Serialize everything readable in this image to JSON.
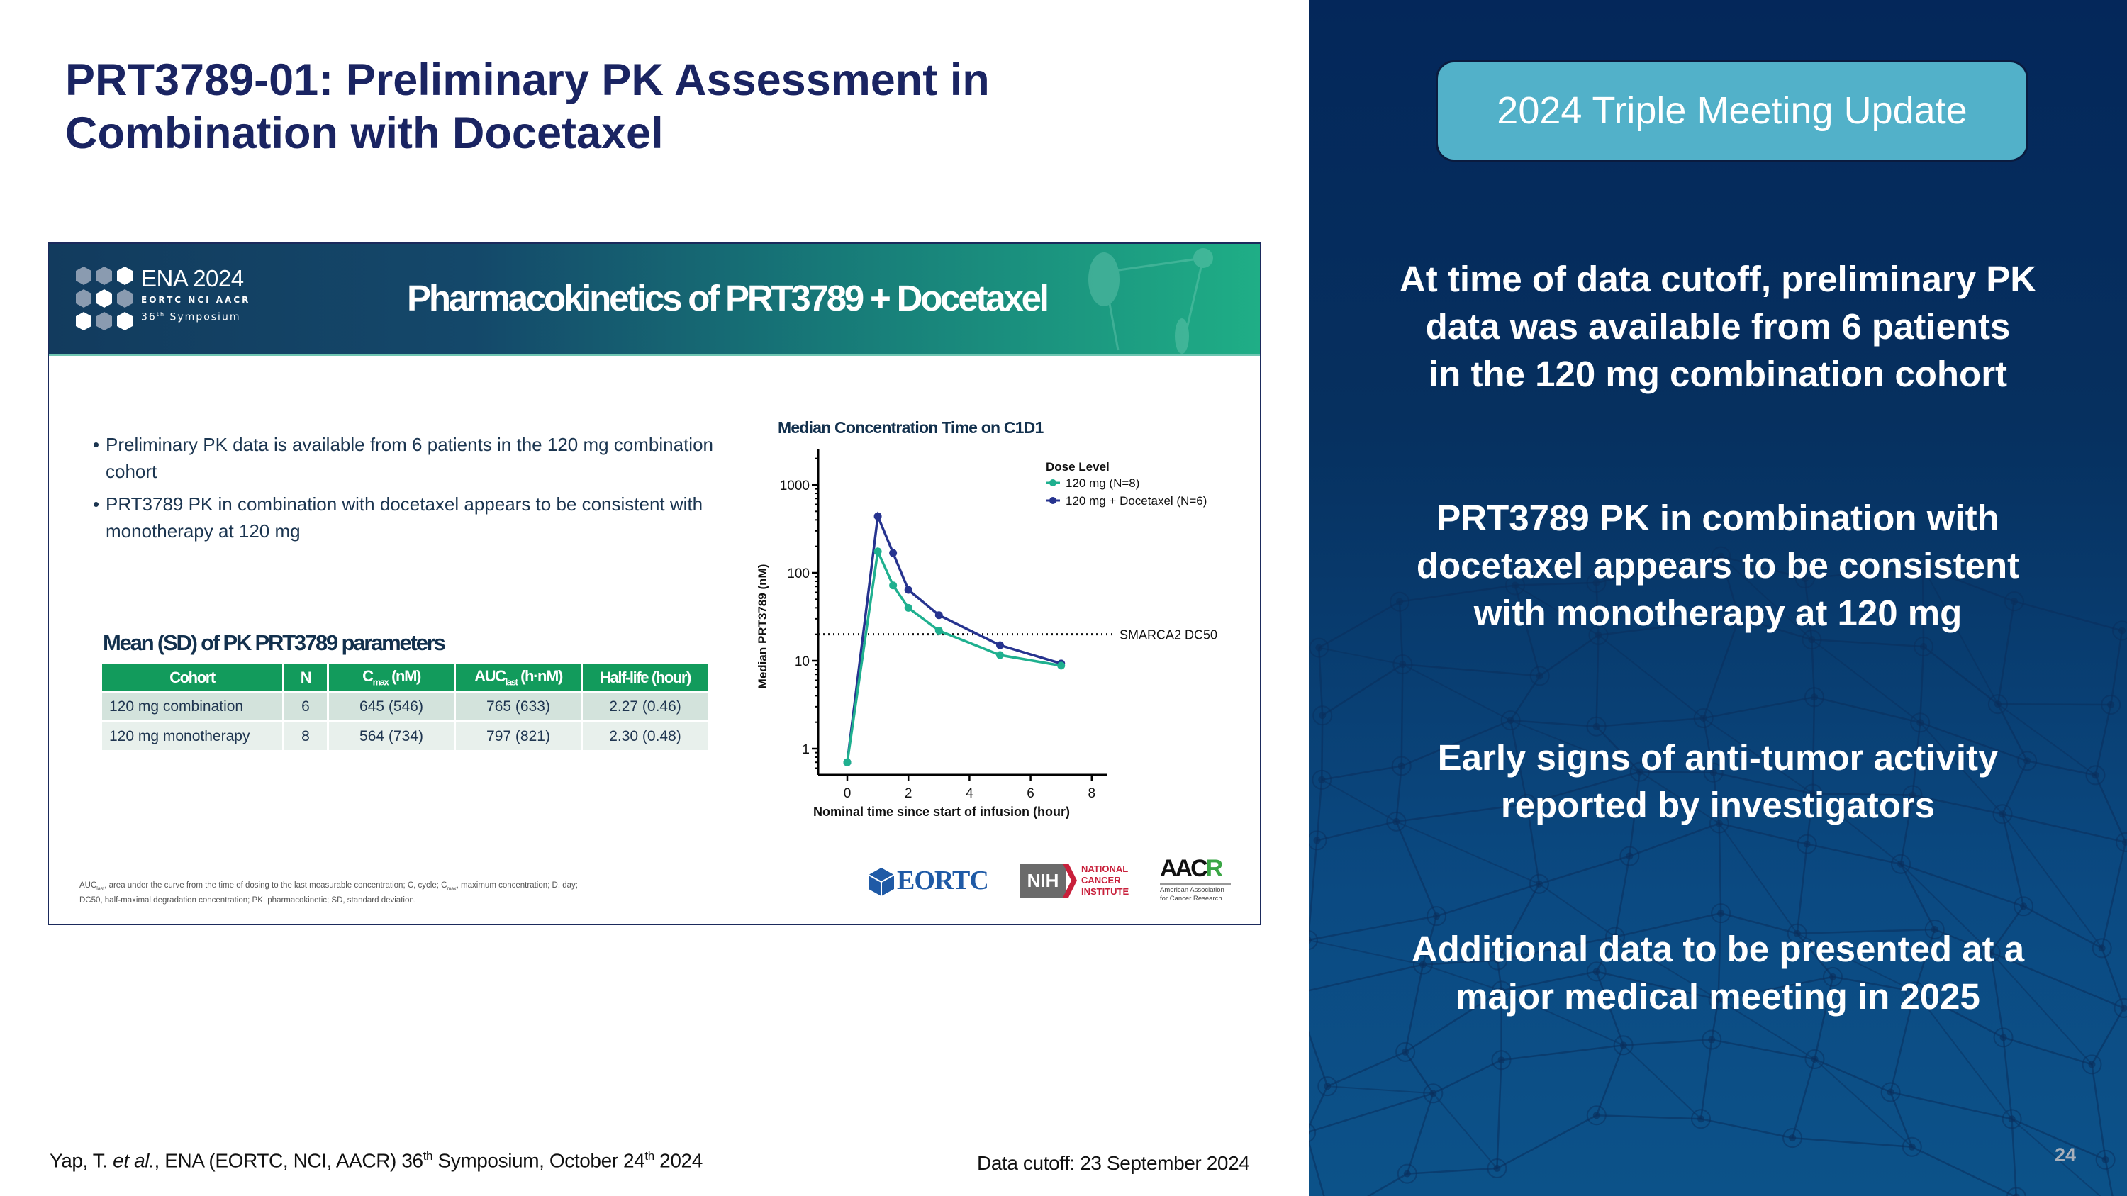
{
  "slide": {
    "title": "PRT3789-01: Preliminary PK Assessment in Combination with Docetaxel",
    "page_number": "24",
    "colors": {
      "title": "#1a2462",
      "right_panel": "#06305f",
      "badge": "#52b1c9",
      "table_header": "#129b5c",
      "series_mono": "#1fb08f",
      "series_combo": "#26338f"
    }
  },
  "embedded": {
    "banner": {
      "conference_name": "ENA 2024",
      "conference_orgs": "EORTC NCI AACR",
      "symposium_num": "36",
      "symposium_sup": "th",
      "symposium_word": "Symposium",
      "title": "Pharmacokinetics of PRT3789 + Docetaxel"
    },
    "bullets": [
      "Preliminary PK data is available from 6 patients in the 120 mg combination cohort",
      "PRT3789 PK in combination with docetaxel appears to be consistent with monotherapy at 120 mg"
    ],
    "table": {
      "title": "Mean (SD) of PK PRT3789 parameters",
      "headers": {
        "cohort": "Cohort",
        "n": "N",
        "cmax_main": "C",
        "cmax_sub": "max",
        "cmax_unit": " (nM)",
        "auc_main": "AUC",
        "auc_sub": "last",
        "auc_unit": " (h·nM)",
        "halflife": "Half-life (hour)"
      },
      "rows": [
        {
          "cohort": "120 mg combination",
          "n": "6",
          "cmax": "645 (546)",
          "auc": "765 (633)",
          "halflife": "2.27 (0.46)"
        },
        {
          "cohort": "120 mg monotherapy",
          "n": "8",
          "cmax": "564 (734)",
          "auc": "797 (821)",
          "halflife": "2.30 (0.48)"
        }
      ]
    },
    "footnote": {
      "auc_main": "AUC",
      "auc_sub": "last",
      "part1": ", area under the curve from the time of dosing to the last measurable concentration;  C, cycle; C",
      "cmax_sub": "max",
      "part2": ", maximum concentration; D, day;",
      "line2": "DC50, half-maximal degradation concentration; PK, pharmacokinetic; SD, standard deviation."
    },
    "logos": {
      "eortc": "EORTC",
      "nih": "NIH",
      "nci_lines": [
        "NATIONAL",
        "CANCER",
        "INSTITUTE"
      ],
      "aacr_a": "AAC",
      "aacr_r": "R",
      "aacr_lines": [
        "American Association",
        "for Cancer Research"
      ]
    }
  },
  "chart_data": {
    "type": "line",
    "title": "Median Concentration Time on C1D1",
    "xlabel": "Nominal time since start of infusion (hour)",
    "ylabel": "Median PRT3789 (nM)",
    "yscale": "log",
    "xlim": [
      -0.9,
      8.4
    ],
    "ylim": [
      0.45,
      2000
    ],
    "xticks": [
      0,
      2,
      4,
      6,
      8
    ],
    "yticks": [
      1,
      10,
      100,
      1000
    ],
    "ytick_labels": [
      "1",
      "10",
      "100",
      "1000"
    ],
    "legend_title": "Dose Level",
    "legend_position": "upper right",
    "grid": false,
    "series": [
      {
        "name": "120 mg (N=8)",
        "color": "#1fb08f",
        "x": [
          0,
          1,
          1.5,
          2,
          3,
          5,
          7
        ],
        "y": [
          0.7,
          175,
          72,
          40,
          22,
          11.6,
          8.8
        ]
      },
      {
        "name": "120 mg + Docetaxel (N=6)",
        "color": "#26338f",
        "x": [
          0,
          1,
          1.5,
          2,
          3,
          5,
          7
        ],
        "y": [
          0.7,
          440,
          168,
          64,
          33,
          15,
          9.3
        ]
      }
    ],
    "reference_lines": [
      {
        "label": "SMARCA2 DC50",
        "y": 20,
        "style": "dotted"
      }
    ]
  },
  "footer": {
    "citation_author": "Yap, T. ",
    "citation_etal": "et al.",
    "citation_mid": ", ENA (EORTC, NCI, AACR) 36",
    "citation_sup1": "th",
    "citation_mid2": " Symposium, October 24",
    "citation_sup2": "th",
    "citation_end": " 2024",
    "data_cutoff": "Data cutoff: 23 September 2024"
  },
  "right_panel": {
    "badge": "2024 Triple Meeting Update",
    "points": [
      "At time of data cutoff, preliminary PK\ndata was available from 6 patients\nin the 120 mg combination cohort",
      "PRT3789 PK in combination with\ndocetaxel appears to be consistent\nwith monotherapy at 120 mg",
      "Early signs of anti-tumor activity\nreported by investigators",
      "Additional data to be presented at a\nmajor medical meeting in 2025"
    ]
  }
}
